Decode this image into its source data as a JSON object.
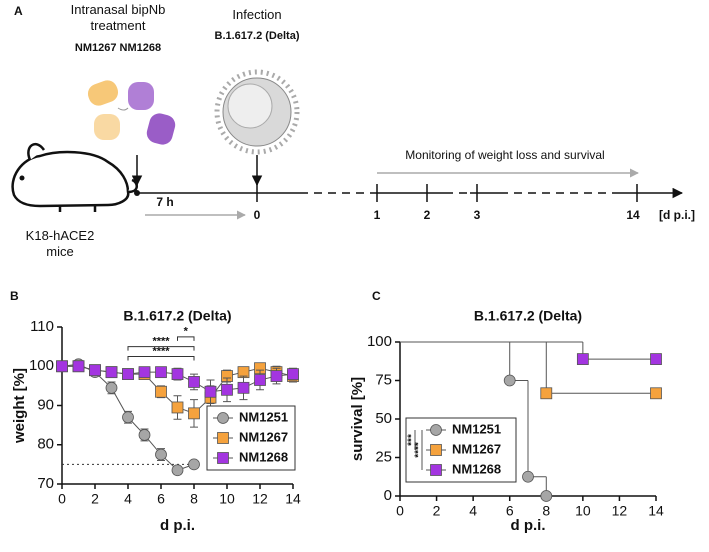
{
  "panel_a": {
    "label": "A",
    "treatment": "Intranasal bipNb treatment",
    "nanobodies": "NM1267 NM1268",
    "infection": "Infection",
    "variant": "B.1.617.2 (Delta)",
    "monitoring": "Monitoring of weight loss and survival",
    "mice": "K18-hACE2 mice",
    "interval": "7 h",
    "timeline_ticks": [
      "0",
      "1",
      "2",
      "3",
      "14"
    ],
    "timeline_unit": "[d p.i.]"
  },
  "chart_data": [
    {
      "type": "line",
      "panel_label": "B",
      "title": "B.1.617.2 (Delta)",
      "x_label": "d p.i.",
      "y_label": "weight [%]",
      "xlim": [
        0,
        14
      ],
      "xticks": [
        0,
        2,
        4,
        6,
        8,
        10,
        12,
        14
      ],
      "ylim": [
        70,
        110
      ],
      "yticks": [
        70,
        80,
        90,
        100,
        110
      ],
      "legend": "lower right",
      "reference_line": {
        "y": 75,
        "x": [
          0,
          8
        ]
      },
      "annotations": [
        {
          "text": "*",
          "x": [
            7,
            8
          ],
          "y": 107.5,
          "color": "#222222"
        },
        {
          "text": "****",
          "x": [
            4,
            8
          ],
          "y": 105,
          "color": "#a335e0"
        },
        {
          "text": "****",
          "x": [
            4,
            8
          ],
          "y": 102.5,
          "color": "#f5a23d"
        }
      ],
      "series": [
        {
          "name": "NM1251",
          "color": "#a6a6a6",
          "marker": "circle",
          "x": [
            0,
            1,
            2,
            3,
            4,
            5,
            6,
            7,
            8
          ],
          "values": [
            100,
            100.5,
            98.5,
            94.5,
            87,
            82.5,
            77.5,
            73.5,
            75
          ],
          "errors": [
            0.5,
            0.5,
            1,
            1.5,
            1.5,
            1.5,
            1.5,
            1,
            0.5
          ]
        },
        {
          "name": "NM1267",
          "color": "#f5a23d",
          "marker": "square",
          "x": [
            0,
            1,
            2,
            3,
            4,
            5,
            6,
            7,
            8,
            9,
            10,
            11,
            12,
            13,
            14
          ],
          "values": [
            100,
            100,
            99,
            98.5,
            98,
            98,
            93.5,
            89.5,
            88,
            92,
            97.5,
            98.5,
            99.5,
            98.5,
            97.5
          ],
          "errors": [
            0.5,
            0.5,
            0.5,
            0.5,
            0.5,
            0.5,
            1.5,
            3,
            3.5,
            3,
            1.5,
            1,
            1,
            1.5,
            1.5
          ]
        },
        {
          "name": "NM1268",
          "color": "#a335e0",
          "marker": "square",
          "x": [
            0,
            1,
            2,
            3,
            4,
            5,
            6,
            7,
            8,
            9,
            10,
            11,
            12,
            13,
            14
          ],
          "values": [
            100,
            100,
            99,
            98.5,
            98,
            98.5,
            98.5,
            98,
            96,
            93.5,
            94,
            94.5,
            96.5,
            97.5,
            98
          ],
          "errors": [
            0.5,
            0.5,
            0.5,
            0.5,
            0.5,
            0.5,
            0.5,
            1.5,
            2,
            3,
            3,
            3,
            2.5,
            2,
            1.5
          ]
        }
      ]
    },
    {
      "type": "step",
      "panel_label": "C",
      "title": "B.1.617.2 (Delta)",
      "x_label": "d p.i.",
      "y_label": "survival [%]",
      "xlim": [
        0,
        14
      ],
      "xticks": [
        0,
        2,
        4,
        6,
        8,
        10,
        12,
        14
      ],
      "ylim": [
        0,
        100
      ],
      "yticks": [
        0,
        25,
        50,
        75,
        100
      ],
      "legend": "lower left",
      "legend_annotations": [
        {
          "text": "***",
          "color": "#f5a23d"
        },
        {
          "text": "****",
          "color": "#a335e0"
        }
      ],
      "series": [
        {
          "name": "NM1251",
          "color": "#a6a6a6",
          "marker": "circle",
          "x": [
            0,
            6,
            7,
            8
          ],
          "values": [
            100,
            75,
            12.5,
            0
          ]
        },
        {
          "name": "NM1267",
          "color": "#f5a23d",
          "marker": "square",
          "x": [
            0,
            8,
            14
          ],
          "values": [
            100,
            66.7,
            66.7
          ]
        },
        {
          "name": "NM1268",
          "color": "#a335e0",
          "marker": "square",
          "x": [
            0,
            10,
            14
          ],
          "values": [
            100,
            88.9,
            88.9
          ]
        }
      ]
    }
  ]
}
